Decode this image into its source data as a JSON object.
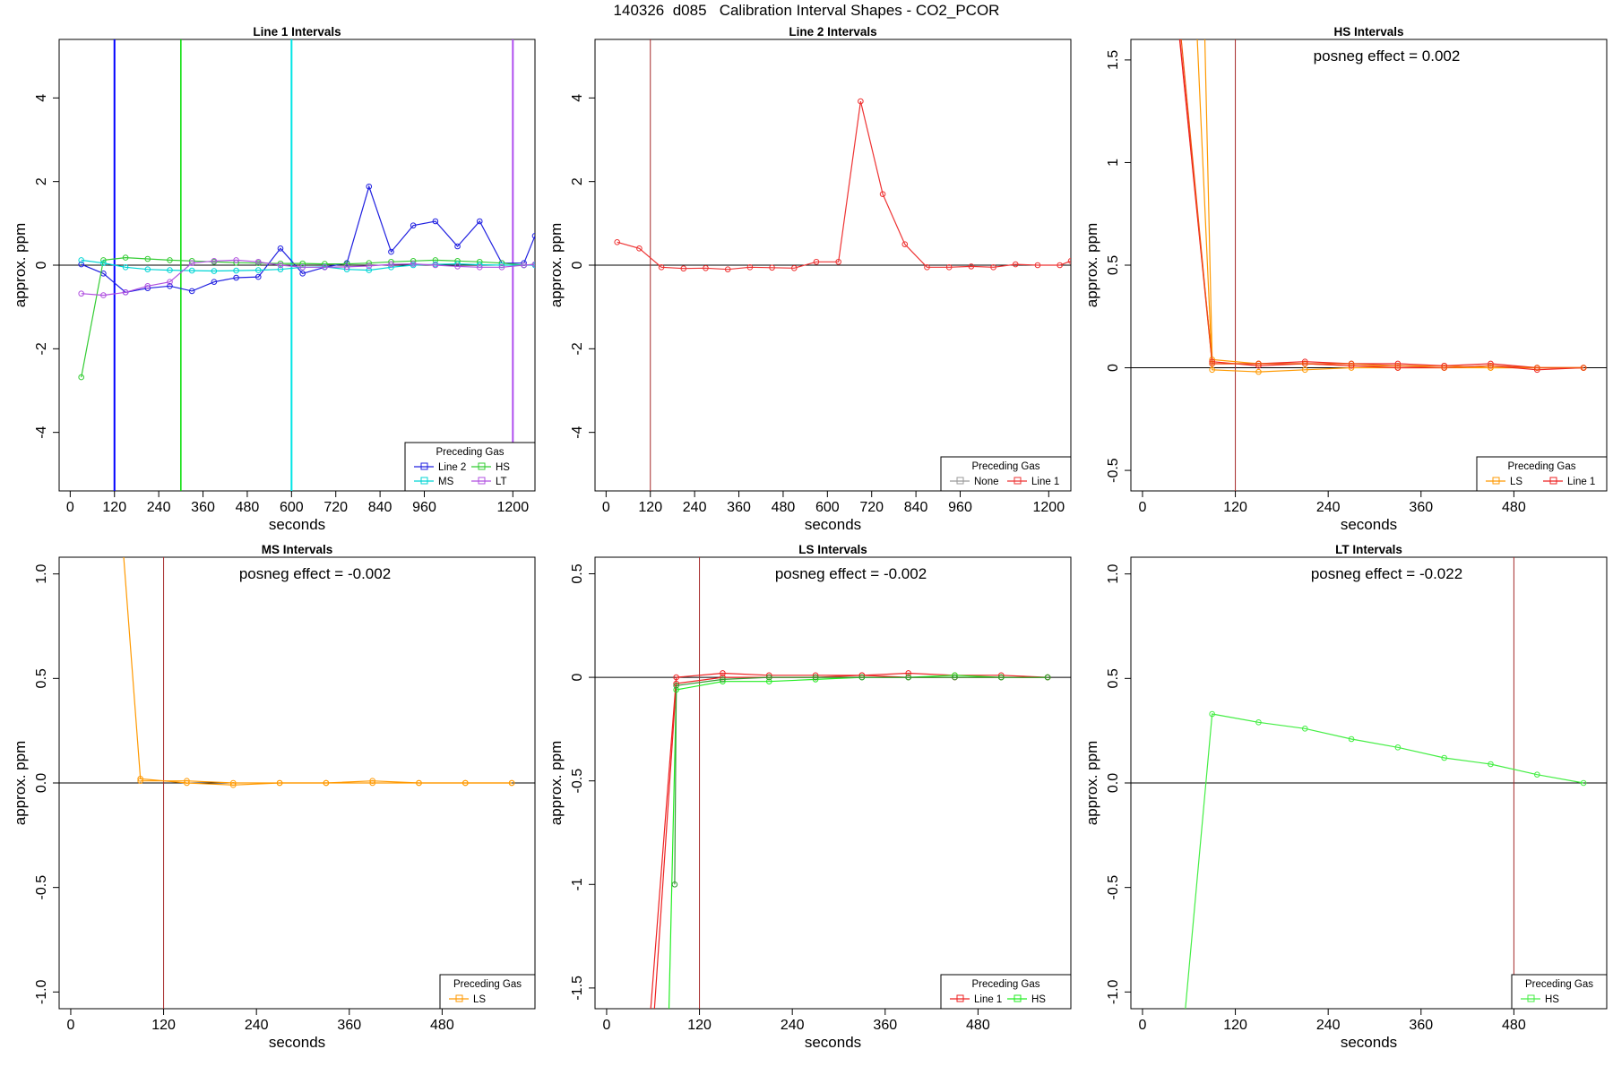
{
  "page_title": "140326  d085   Calibration Interval Shapes - CO2_PCOR",
  "chart_data": [
    {
      "type": "line",
      "title": "Line 1 Intervals",
      "xlabel": "seconds",
      "ylabel": "approx. ppm",
      "xlim": [
        -30,
        1260
      ],
      "ylim": [
        -5.4,
        5.4
      ],
      "xticks": [
        0,
        120,
        240,
        360,
        480,
        600,
        720,
        840,
        960,
        1200
      ],
      "yticks": [
        -4,
        -2,
        0,
        2,
        4
      ],
      "hline": 0,
      "vlines": [
        {
          "x": 120,
          "color": "#0000ff",
          "width": 2
        },
        {
          "x": 300,
          "color": "#00dd00",
          "width": 1.5
        },
        {
          "x": 600,
          "color": "#00e5e5",
          "width": 2
        },
        {
          "x": 1200,
          "color": "#b050f0",
          "width": 2
        }
      ],
      "legend": {
        "title": "Preceding Gas",
        "position": "bottom-right",
        "ncol": 2
      },
      "series": [
        {
          "name": "Line 2",
          "color": "#2020e0",
          "x": [
            30,
            90,
            150,
            210,
            270,
            330,
            390,
            450,
            510,
            570,
            630,
            690,
            750,
            810,
            870,
            930,
            990,
            1050,
            1110,
            1170,
            1230,
            1260
          ],
          "y": [
            0.02,
            -0.2,
            -0.65,
            -0.55,
            -0.5,
            -0.62,
            -0.4,
            -0.3,
            -0.28,
            0.4,
            -0.2,
            -0.05,
            0.05,
            1.88,
            0.32,
            0.95,
            1.05,
            0.45,
            1.05,
            0.05,
            0.05,
            0.7
          ]
        },
        {
          "name": "HS",
          "color": "#33cc33",
          "x": [
            30,
            90,
            150,
            210,
            270,
            330,
            390,
            450,
            510,
            570,
            630,
            690,
            750,
            810,
            870,
            930,
            990,
            1050,
            1110,
            1170,
            1230,
            1260
          ],
          "y": [
            -2.68,
            0.12,
            0.18,
            0.15,
            0.12,
            0.1,
            0.08,
            0.06,
            0.05,
            0.04,
            0.04,
            0.03,
            0.03,
            0.05,
            0.08,
            0.1,
            0.12,
            0.1,
            0.08,
            0.05,
            0.0,
            0.02
          ]
        },
        {
          "name": "MS",
          "color": "#00d5d5",
          "x": [
            30,
            90,
            150,
            210,
            270,
            330,
            390,
            450,
            510,
            570,
            630,
            690,
            750,
            810,
            870,
            930,
            990,
            1050,
            1110,
            1170,
            1230,
            1260
          ],
          "y": [
            0.12,
            0.05,
            -0.05,
            -0.1,
            -0.12,
            -0.13,
            -0.14,
            -0.13,
            -0.12,
            -0.1,
            -0.05,
            -0.04,
            -0.1,
            -0.12,
            -0.05,
            0.0,
            0.02,
            0.03,
            0.01,
            0.0,
            0.0,
            0.0
          ]
        },
        {
          "name": "LT",
          "color": "#b050e0",
          "x": [
            30,
            90,
            150,
            210,
            270,
            330,
            390,
            450,
            510,
            570,
            630,
            690,
            750,
            810,
            870,
            930,
            990,
            1050,
            1110,
            1170,
            1230,
            1260
          ],
          "y": [
            -0.68,
            -0.72,
            -0.65,
            -0.5,
            -0.4,
            0.05,
            0.1,
            0.12,
            0.08,
            0.0,
            -0.05,
            -0.05,
            -0.04,
            -0.02,
            0.02,
            0.03,
            0.0,
            -0.03,
            -0.05,
            -0.05,
            0.0,
            0.02
          ]
        }
      ]
    },
    {
      "type": "line",
      "title": "Line 2 Intervals",
      "xlabel": "seconds",
      "ylabel": "approx. ppm",
      "xlim": [
        -30,
        1260
      ],
      "ylim": [
        -5.4,
        5.4
      ],
      "xticks": [
        0,
        120,
        240,
        360,
        480,
        600,
        720,
        840,
        960,
        1200
      ],
      "yticks": [
        -4,
        -2,
        0,
        2,
        4
      ],
      "hline": 0,
      "vlines": [
        {
          "x": 120,
          "color": "#a52a2a",
          "width": 1
        }
      ],
      "legend": {
        "title": "Preceding Gas",
        "position": "bottom-right",
        "ncol": 2
      },
      "series": [
        {
          "name": "None",
          "color": "#9a9a9a",
          "x": [],
          "y": []
        },
        {
          "name": "Line 1",
          "color": "#ee3333",
          "x": [
            30,
            90,
            150,
            210,
            270,
            330,
            390,
            450,
            510,
            570,
            630,
            690,
            750,
            810,
            870,
            930,
            990,
            1050,
            1110,
            1170,
            1230,
            1260
          ],
          "y": [
            0.55,
            0.4,
            -0.05,
            -0.08,
            -0.07,
            -0.1,
            -0.05,
            -0.06,
            -0.07,
            0.08,
            0.08,
            3.92,
            1.7,
            0.5,
            -0.05,
            -0.05,
            -0.03,
            -0.05,
            0.02,
            0.0,
            0.0,
            0.1
          ]
        }
      ]
    },
    {
      "type": "line",
      "title": "HS Intervals",
      "xlabel": "seconds",
      "ylabel": "approx. ppm",
      "xlim": [
        -15,
        600
      ],
      "ylim": [
        -0.6,
        1.6
      ],
      "xticks": [
        0,
        120,
        240,
        360,
        480
      ],
      "yticks": [
        -0.5,
        0.0,
        0.5,
        1.0,
        1.5
      ],
      "hline": 0,
      "vlines": [
        {
          "x": 120,
          "color": "#a52a2a",
          "width": 1
        }
      ],
      "annotation": "posneg effect = 0.002",
      "legend": {
        "title": "Preceding Gas",
        "position": "bottom-right",
        "ncol": 2
      },
      "series": [
        {
          "name": "LS",
          "color": "#ff9900",
          "x": [
            80,
            90,
            150,
            210,
            270,
            330,
            390,
            450,
            510,
            570
          ],
          "y": [
            1.7,
            0.04,
            0.02,
            0.02,
            0.01,
            0.01,
            0.01,
            0.0,
            0.0,
            0.0
          ]
        },
        {
          "name": "LS",
          "color": "#ff9900",
          "x": [
            60,
            90,
            150,
            210,
            270,
            330,
            390,
            450,
            510,
            570
          ],
          "y": [
            2.5,
            -0.01,
            -0.02,
            -0.01,
            0.0,
            0.0,
            0.0,
            0.0,
            0.0,
            0.0
          ]
        },
        {
          "name": "Line 1",
          "color": "#ee2222",
          "x": [
            40,
            90,
            150,
            210,
            270,
            330,
            390,
            450,
            510,
            570
          ],
          "y": [
            1.9,
            0.02,
            0.02,
            0.03,
            0.02,
            0.02,
            0.01,
            0.02,
            0.0,
            0.0
          ]
        },
        {
          "name": "Line 1",
          "color": "#ee2222",
          "x": [
            35,
            90,
            150,
            210,
            270,
            330,
            390,
            450,
            510,
            570
          ],
          "y": [
            2.1,
            0.03,
            0.01,
            0.02,
            0.01,
            0.0,
            0.0,
            0.01,
            -0.01,
            0.0
          ]
        },
        {
          "name": "Line 1",
          "color": "#ee5511",
          "x": [
            45,
            90,
            150,
            210,
            270,
            330,
            390,
            450,
            510,
            570
          ],
          "y": [
            1.8,
            0.02,
            0.02,
            0.02,
            0.02,
            0.01,
            0.0,
            0.01,
            0.0,
            0.0
          ]
        }
      ]
    },
    {
      "type": "line",
      "title": "MS Intervals",
      "xlabel": "seconds",
      "ylabel": "approx. ppm",
      "xlim": [
        -15,
        600
      ],
      "ylim": [
        -1.08,
        1.08
      ],
      "xticks": [
        0,
        120,
        240,
        360,
        480
      ],
      "yticks": [
        -1.0,
        -0.5,
        0.0,
        0.5,
        1.0
      ],
      "hline": 0,
      "vlines": [
        {
          "x": 120,
          "color": "#a52a2a",
          "width": 1
        }
      ],
      "annotation": "posneg effect = -0.002",
      "legend": {
        "title": "Preceding Gas",
        "position": "bottom-right",
        "ncol": 1
      },
      "series": [
        {
          "name": "LS",
          "color": "#ff9900",
          "x": [
            68,
            90,
            150,
            210,
            270,
            330,
            390,
            450,
            510,
            570
          ],
          "y": [
            1.1,
            0.02,
            0.0,
            -0.01,
            0.0,
            0.0,
            0.01,
            0.0,
            0.0,
            0.0
          ]
        },
        {
          "name": "LS",
          "color": "#ff9900",
          "x": [
            90,
            150,
            210,
            270,
            330,
            390,
            450,
            510,
            570
          ],
          "y": [
            0.01,
            0.01,
            0.0,
            0.0,
            0.0,
            0.0,
            0.0,
            0.0,
            0.0
          ]
        }
      ]
    },
    {
      "type": "line",
      "title": "LS Intervals",
      "xlabel": "seconds",
      "ylabel": "approx. ppm",
      "xlim": [
        -15,
        600
      ],
      "ylim": [
        -1.6,
        0.58
      ],
      "xticks": [
        0,
        120,
        240,
        360,
        480
      ],
      "yticks": [
        -1.5,
        -1.0,
        -0.5,
        0.0,
        0.5
      ],
      "hline": 0,
      "vlines": [
        {
          "x": 120,
          "color": "#a52a2a",
          "width": 1
        }
      ],
      "annotation": "posneg effect = -0.002",
      "legend": {
        "title": "Preceding Gas",
        "position": "bottom-right",
        "ncol": 2
      },
      "series": [
        {
          "name": "Line 1",
          "color": "#ee2222",
          "x": [
            55,
            90,
            150,
            210,
            270,
            330,
            390,
            450,
            510,
            570
          ],
          "y": [
            -1.7,
            0.0,
            0.02,
            0.01,
            0.01,
            0.01,
            0.02,
            0.01,
            0.01,
            0.0
          ]
        },
        {
          "name": "Line 1",
          "color": "#ee2222",
          "x": [
            60,
            90,
            150,
            210,
            270,
            330,
            390,
            450,
            510,
            570
          ],
          "y": [
            -1.7,
            -0.03,
            0.0,
            0.0,
            0.0,
            0.01,
            0.0,
            0.0,
            0.0,
            0.0
          ]
        },
        {
          "name": "HS",
          "color": "#22ee22",
          "x": [
            80,
            90,
            150,
            210,
            270,
            330,
            390,
            450,
            510,
            570
          ],
          "y": [
            -1.7,
            -0.06,
            -0.02,
            -0.02,
            -0.01,
            0.0,
            0.0,
            0.01,
            0.0,
            0.0
          ]
        },
        {
          "name": "HS",
          "color": "#339933",
          "x": [
            88,
            90,
            150,
            210,
            270,
            330,
            390,
            450,
            510,
            570
          ],
          "y": [
            -1.0,
            -0.04,
            -0.01,
            0.0,
            0.0,
            0.0,
            0.0,
            0.0,
            0.0,
            0.0
          ]
        }
      ]
    },
    {
      "type": "line",
      "title": "LT Intervals",
      "xlabel": "seconds",
      "ylabel": "approx. ppm",
      "xlim": [
        -15,
        600
      ],
      "ylim": [
        -1.08,
        1.08
      ],
      "xticks": [
        0,
        120,
        240,
        360,
        480
      ],
      "yticks": [
        -1.0,
        -0.5,
        0.0,
        0.5,
        1.0
      ],
      "hline": 0,
      "vlines": [
        {
          "x": 480,
          "color": "#a52a2a",
          "width": 1
        }
      ],
      "annotation": "posneg effect = -0.022",
      "legend": {
        "title": "Preceding Gas",
        "position": "bottom-right",
        "ncol": 1
      },
      "series": [
        {
          "name": "HS",
          "color": "#44ee44",
          "x": [
            55,
            90,
            150,
            210,
            270,
            330,
            390,
            450,
            510,
            570
          ],
          "y": [
            -1.1,
            0.33,
            0.29,
            0.26,
            0.21,
            0.17,
            0.12,
            0.09,
            0.04,
            0.0
          ]
        }
      ]
    }
  ]
}
